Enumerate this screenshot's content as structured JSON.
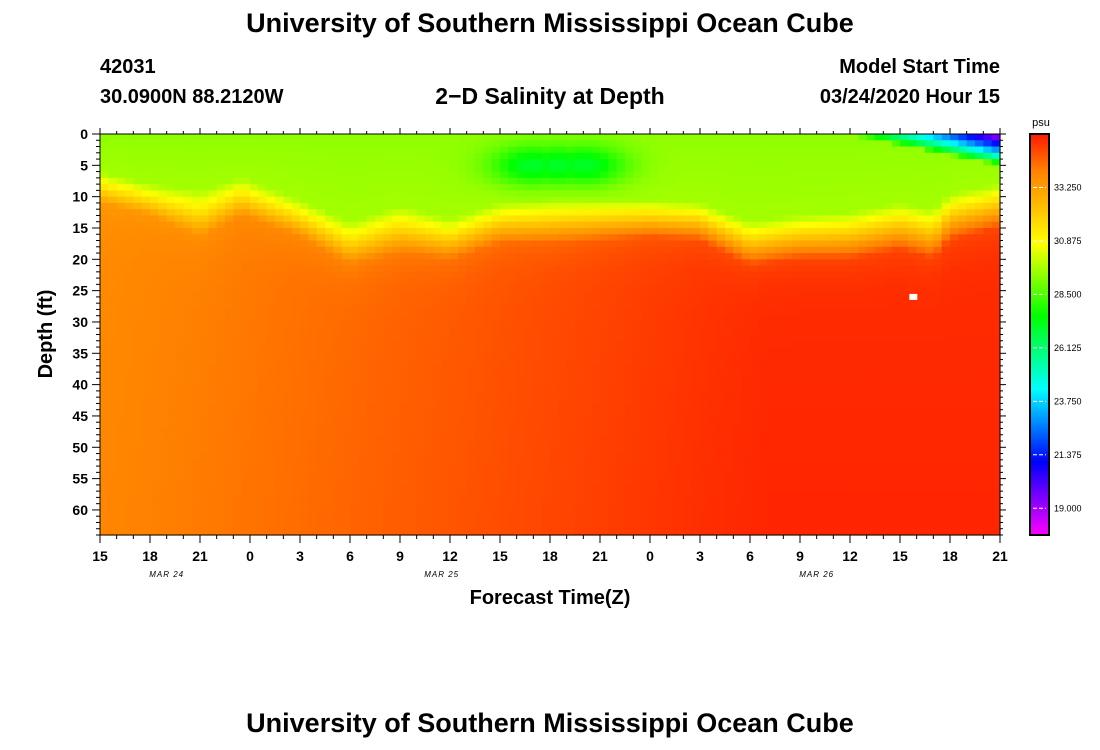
{
  "header": {
    "title": "University of Southern Mississippi Ocean Cube",
    "footer_title": "University of Southern Mississippi Ocean Cube",
    "station_id": "42031",
    "station_coords": "30.0900N 88.2120W",
    "chart_title": "2−D Salinity at Depth",
    "model_start_label": "Model Start Time",
    "model_start_value": "03/24/2020 Hour 15"
  },
  "chart_data": {
    "type": "heatmap",
    "title": "2−D Salinity at Depth",
    "xlabel": "Forecast Time(Z)",
    "ylabel": "Depth (ft)",
    "x_ticks": [
      "15",
      "18",
      "21",
      "0",
      "3",
      "6",
      "9",
      "12",
      "15",
      "18",
      "21",
      "0",
      "3",
      "6",
      "9",
      "12",
      "15",
      "18",
      "21"
    ],
    "x_hours": [
      0,
      3,
      6,
      9,
      12,
      15,
      18,
      21,
      24,
      27,
      30,
      33,
      36,
      39,
      42,
      45,
      48,
      51,
      54
    ],
    "date_labels": [
      {
        "label": "MAR 24",
        "hour": 4
      },
      {
        "label": "MAR 25",
        "hour": 20.5
      },
      {
        "label": "MAR 26",
        "hour": 43
      }
    ],
    "y_ticks": [
      0,
      5,
      10,
      15,
      20,
      25,
      30,
      35,
      40,
      45,
      50,
      55,
      60
    ],
    "ylim": [
      0,
      64
    ],
    "xlim": [
      0,
      54
    ],
    "colorbar": {
      "unit": "psu",
      "ticks": [
        33.25,
        30.875,
        28.5,
        26.125,
        23.75,
        21.375,
        19.0
      ],
      "tick_labels": [
        "33.250",
        "30.875",
        "28.500",
        "26.125",
        "23.750",
        "21.375",
        "19.000"
      ],
      "range": [
        17.8125,
        35.625
      ],
      "colors": [
        "#ff00ff",
        "#8000ff",
        "#0000ff",
        "#0080ff",
        "#00ffff",
        "#00ff80",
        "#00ff00",
        "#80ff00",
        "#ffff00",
        "#ffbf00",
        "#ff8000",
        "#ff1a00"
      ]
    },
    "surface_depth_ft": {
      "hours": [
        0,
        3,
        6,
        8.5,
        12,
        15,
        18,
        21,
        24,
        27,
        30,
        33,
        36,
        39,
        42,
        45,
        48,
        50,
        51,
        54
      ],
      "green_depth": [
        6,
        8,
        9,
        7,
        10.5,
        14,
        11.5,
        13.5,
        11,
        10.5,
        10.5,
        10.5,
        11,
        14,
        13,
        12.5,
        11,
        12,
        9.5,
        8
      ],
      "halocline_depth": [
        11,
        13,
        16.5,
        13,
        16.5,
        21,
        19,
        20,
        17.5,
        17.5,
        17,
        16.5,
        17,
        21,
        20,
        20,
        18.5,
        20,
        17,
        15
      ]
    },
    "low_salinity_zone": {
      "hours": [
        26,
        27.5,
        29
      ],
      "depth_ft": [
        5,
        5,
        5
      ],
      "value": 27.0
    },
    "surface_fresh_plume": {
      "start_hour": 44.5,
      "min_value": 18.5,
      "max_depth_ft": 5
    },
    "deep_salinity": {
      "left_value": 33.7,
      "right_value": 35.3
    },
    "marker": {
      "hour": 48.8,
      "depth_ft": 26,
      "color": "#ffffff"
    }
  }
}
